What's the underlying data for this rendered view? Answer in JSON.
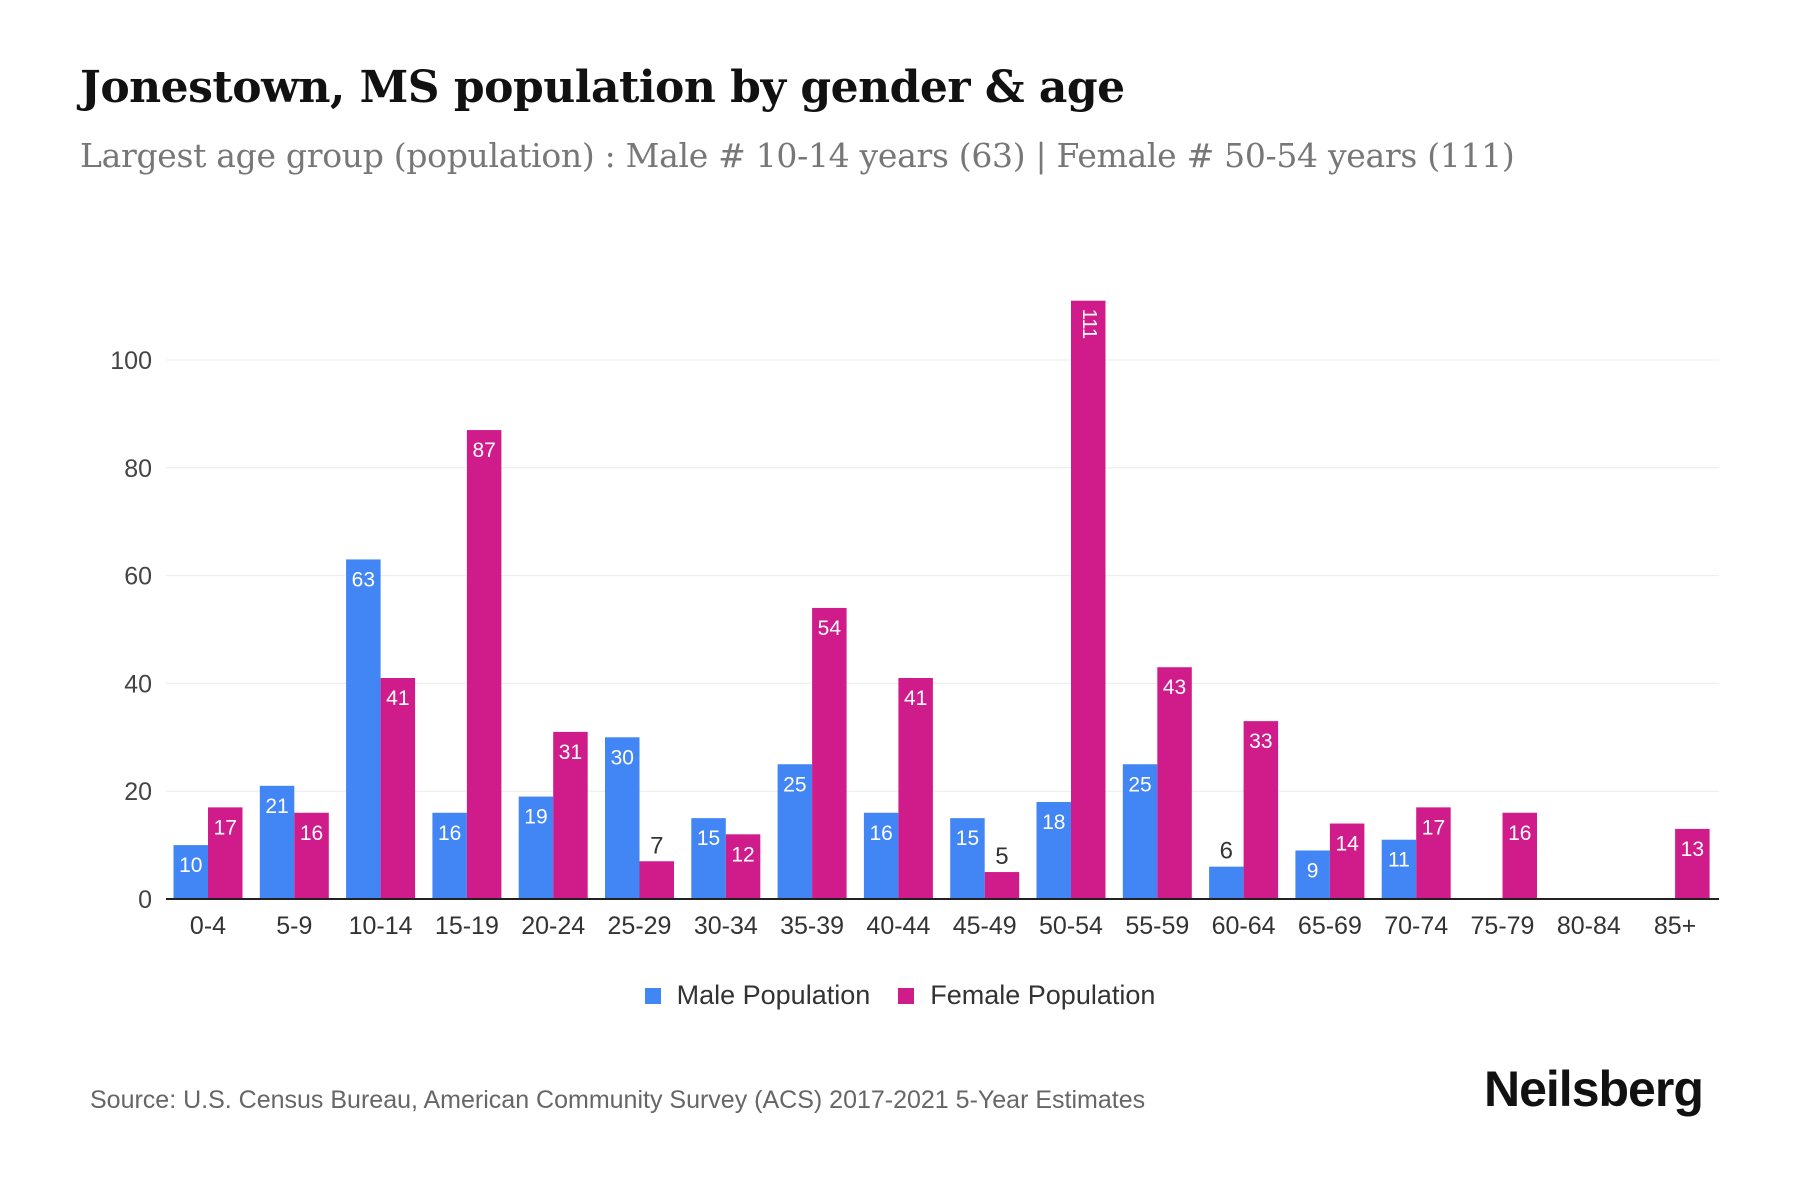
{
  "title": "Jonestown, MS population by gender & age",
  "subtitle": "Largest age group (population) : Male # 10-14 years (63) | Female # 50-54 years (111)",
  "source": "Source: U.S. Census Bureau, American Community Survey (ACS) 2017-2021 5-Year Estimates",
  "logo": "Neilsberg",
  "chart_data": {
    "type": "bar",
    "categories": [
      "0-4",
      "5-9",
      "10-14",
      "15-19",
      "20-24",
      "25-29",
      "30-34",
      "35-39",
      "40-44",
      "45-49",
      "50-54",
      "55-59",
      "60-64",
      "65-69",
      "70-74",
      "75-79",
      "80-84",
      "85+"
    ],
    "series": [
      {
        "name": "Male Population",
        "color": "#4285f4",
        "values": [
          10,
          21,
          63,
          16,
          19,
          30,
          15,
          25,
          16,
          15,
          18,
          25,
          6,
          9,
          11,
          0,
          0,
          0
        ]
      },
      {
        "name": "Female Population",
        "color": "#d01c8b",
        "values": [
          17,
          16,
          41,
          87,
          31,
          7,
          12,
          54,
          41,
          5,
          111,
          43,
          33,
          14,
          17,
          16,
          0,
          13
        ]
      }
    ],
    "yticks": [
      0,
      20,
      40,
      60,
      80,
      100
    ],
    "ylim": [
      0,
      115
    ],
    "grid": true,
    "legend": "bottom"
  }
}
